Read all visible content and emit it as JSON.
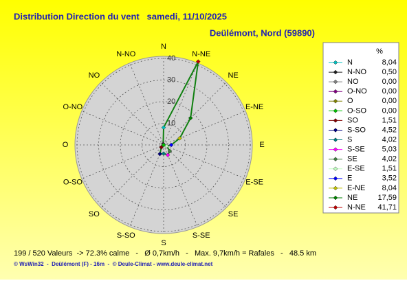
{
  "chart_data": {
    "type": "polar_line",
    "title": "Distribution Direction du vent   samedi, 11/10/2025",
    "subtitle": "Deülémont, Nord (59890)",
    "legend_title": "%",
    "categories": [
      "N",
      "N-NO",
      "NO",
      "O-NO",
      "O",
      "O-SO",
      "SO",
      "S-SO",
      "S",
      "S-SE",
      "SE",
      "E-SE",
      "E",
      "E-NE",
      "NE",
      "N-NE"
    ],
    "values": [
      8.04,
      0.5,
      0.0,
      0.0,
      0.0,
      0.0,
      1.51,
      4.52,
      4.02,
      5.03,
      4.02,
      1.51,
      3.52,
      8.04,
      17.59,
      41.71
    ],
    "value_labels": [
      "8,04",
      "0,50",
      "0,00",
      "0,00",
      "0,00",
      "0,00",
      "1,51",
      "4,52",
      "4,02",
      "5,03",
      "4,02",
      "1,51",
      "3,52",
      "8,04",
      "17,59",
      "41,71"
    ],
    "colors": [
      "#00c0c0",
      "#202020",
      "#808080",
      "#800080",
      "#808000",
      "#00c000",
      "#800000",
      "#000080",
      "#008080",
      "#ff00ff",
      "#408040",
      "#c0ffc0",
      "#0000ff",
      "#c0c000",
      "#008000",
      "#c00000"
    ],
    "line_color": "#108010",
    "direction": "counterclockwise",
    "rlim": [
      0,
      40
    ],
    "rticks": [
      10,
      20,
      30,
      40
    ],
    "grid": true,
    "footer": "199 / 520 Valeurs  -> 72.3% calme   -   Ø 0,7km/h   -   Max. 9,7km/h = Rafales   -   48.5 km",
    "credits": "© WsWin32  -  Deülémont (F) - 16m  -  © Deule-Climat - www.deule-climat.net"
  }
}
